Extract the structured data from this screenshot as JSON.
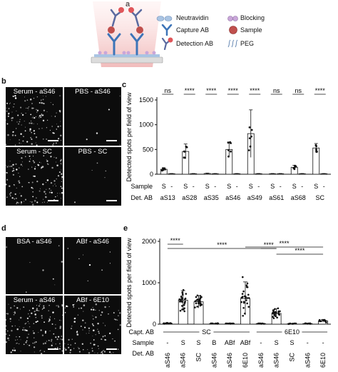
{
  "panels": {
    "a": "a",
    "b": "b",
    "c": "c",
    "d": "d",
    "e": "e"
  },
  "schematic": {
    "legend": [
      {
        "key": "neutravidin",
        "label": "Neutravidin"
      },
      {
        "key": "blocking",
        "label": "Blocking"
      },
      {
        "key": "capture",
        "label": "Capture AB"
      },
      {
        "key": "sample",
        "label": "Sample"
      },
      {
        "key": "detection",
        "label": "Detection AB"
      },
      {
        "key": "peg",
        "label": "PEG"
      }
    ],
    "colors": {
      "neutravidin": "#a9c4e3",
      "capture": "#3d74b8",
      "detection": "#e0565a",
      "sample": "#c0504d",
      "blocking": "#c9a6d9",
      "beam": "#f4c6c6"
    }
  },
  "micrographs_b": [
    {
      "label": "Serum - aS46",
      "density": 0.55,
      "scalebar": true
    },
    {
      "label": "PBS - aS46",
      "density": 0.02,
      "scalebar": true
    },
    {
      "label": "Serum - SC",
      "density": 0.55,
      "scalebar": true
    },
    {
      "label": "PBS - SC",
      "density": 0.02,
      "scalebar": true
    }
  ],
  "micrographs_d": [
    {
      "label": "BSA - aS46",
      "density": 0.03,
      "scalebar": false
    },
    {
      "label": "ABf - aS46",
      "density": 0.03,
      "scalebar": false
    },
    {
      "label": "Serum - aS46",
      "density": 0.6,
      "scalebar": true
    },
    {
      "label": "ABf - 6E10",
      "density": 0.45,
      "scalebar": true
    }
  ],
  "chart_data": [
    {
      "type": "bar",
      "ylabel": "Detected spots per field of view",
      "ylim": [
        0,
        1500
      ],
      "yticks": [
        0,
        500,
        1000,
        1500
      ],
      "row_label_sample": "Sample",
      "row_label_detab": "Det. AB",
      "groups": [
        "aS13",
        "aS28",
        "aS35",
        "aS46",
        "aS49",
        "aS61",
        "aS68",
        "SC"
      ],
      "sample_labels": [
        "S",
        "-"
      ],
      "values": [
        [
          100,
          10
        ],
        [
          460,
          10
        ],
        [
          15,
          10
        ],
        [
          500,
          10
        ],
        [
          820,
          10
        ],
        [
          10,
          10
        ],
        [
          140,
          10
        ],
        [
          530,
          10
        ]
      ],
      "errors": [
        [
          30,
          5
        ],
        [
          150,
          5
        ],
        [
          8,
          5
        ],
        [
          150,
          5
        ],
        [
          480,
          5
        ],
        [
          5,
          5
        ],
        [
          40,
          5
        ],
        [
          90,
          5
        ]
      ],
      "significance": [
        "ns",
        "****",
        "****",
        "****",
        "****",
        "ns",
        "ns",
        "****"
      ]
    },
    {
      "type": "bar",
      "ylabel": "Detected spots per field of view",
      "ylim": [
        0,
        2000
      ],
      "yticks": [
        0,
        1000,
        2000
      ],
      "row_label_capt": "Capt. AB",
      "row_label_sample": "Sample",
      "row_label_detab": "Det. AB",
      "capt_groups": [
        "SC",
        "6E10"
      ],
      "sample_labels": [
        "-",
        "S",
        "S",
        "B",
        "ABf",
        "ABf",
        "-",
        "S",
        "S",
        "-",
        "-"
      ],
      "detab_labels": [
        "aS46",
        "aS46",
        "SC",
        "aS46",
        "aS46",
        "6E10",
        "aS46",
        "aS46",
        "SC",
        "aS46",
        "6E10"
      ],
      "values": [
        20,
        580,
        540,
        15,
        15,
        620,
        15,
        260,
        10,
        15,
        80
      ],
      "errors": [
        10,
        230,
        150,
        5,
        5,
        400,
        5,
        110,
        5,
        5,
        30
      ],
      "significance": [
        {
          "from": 0,
          "to": 1,
          "label": "****"
        },
        {
          "from": 0,
          "to": 7,
          "label": "****"
        },
        {
          "from": 5,
          "to": 10,
          "label": "****"
        },
        {
          "from": 7,
          "to": 10,
          "label": "****"
        },
        {
          "from": 6,
          "to": 7,
          "label": "****"
        }
      ]
    }
  ]
}
